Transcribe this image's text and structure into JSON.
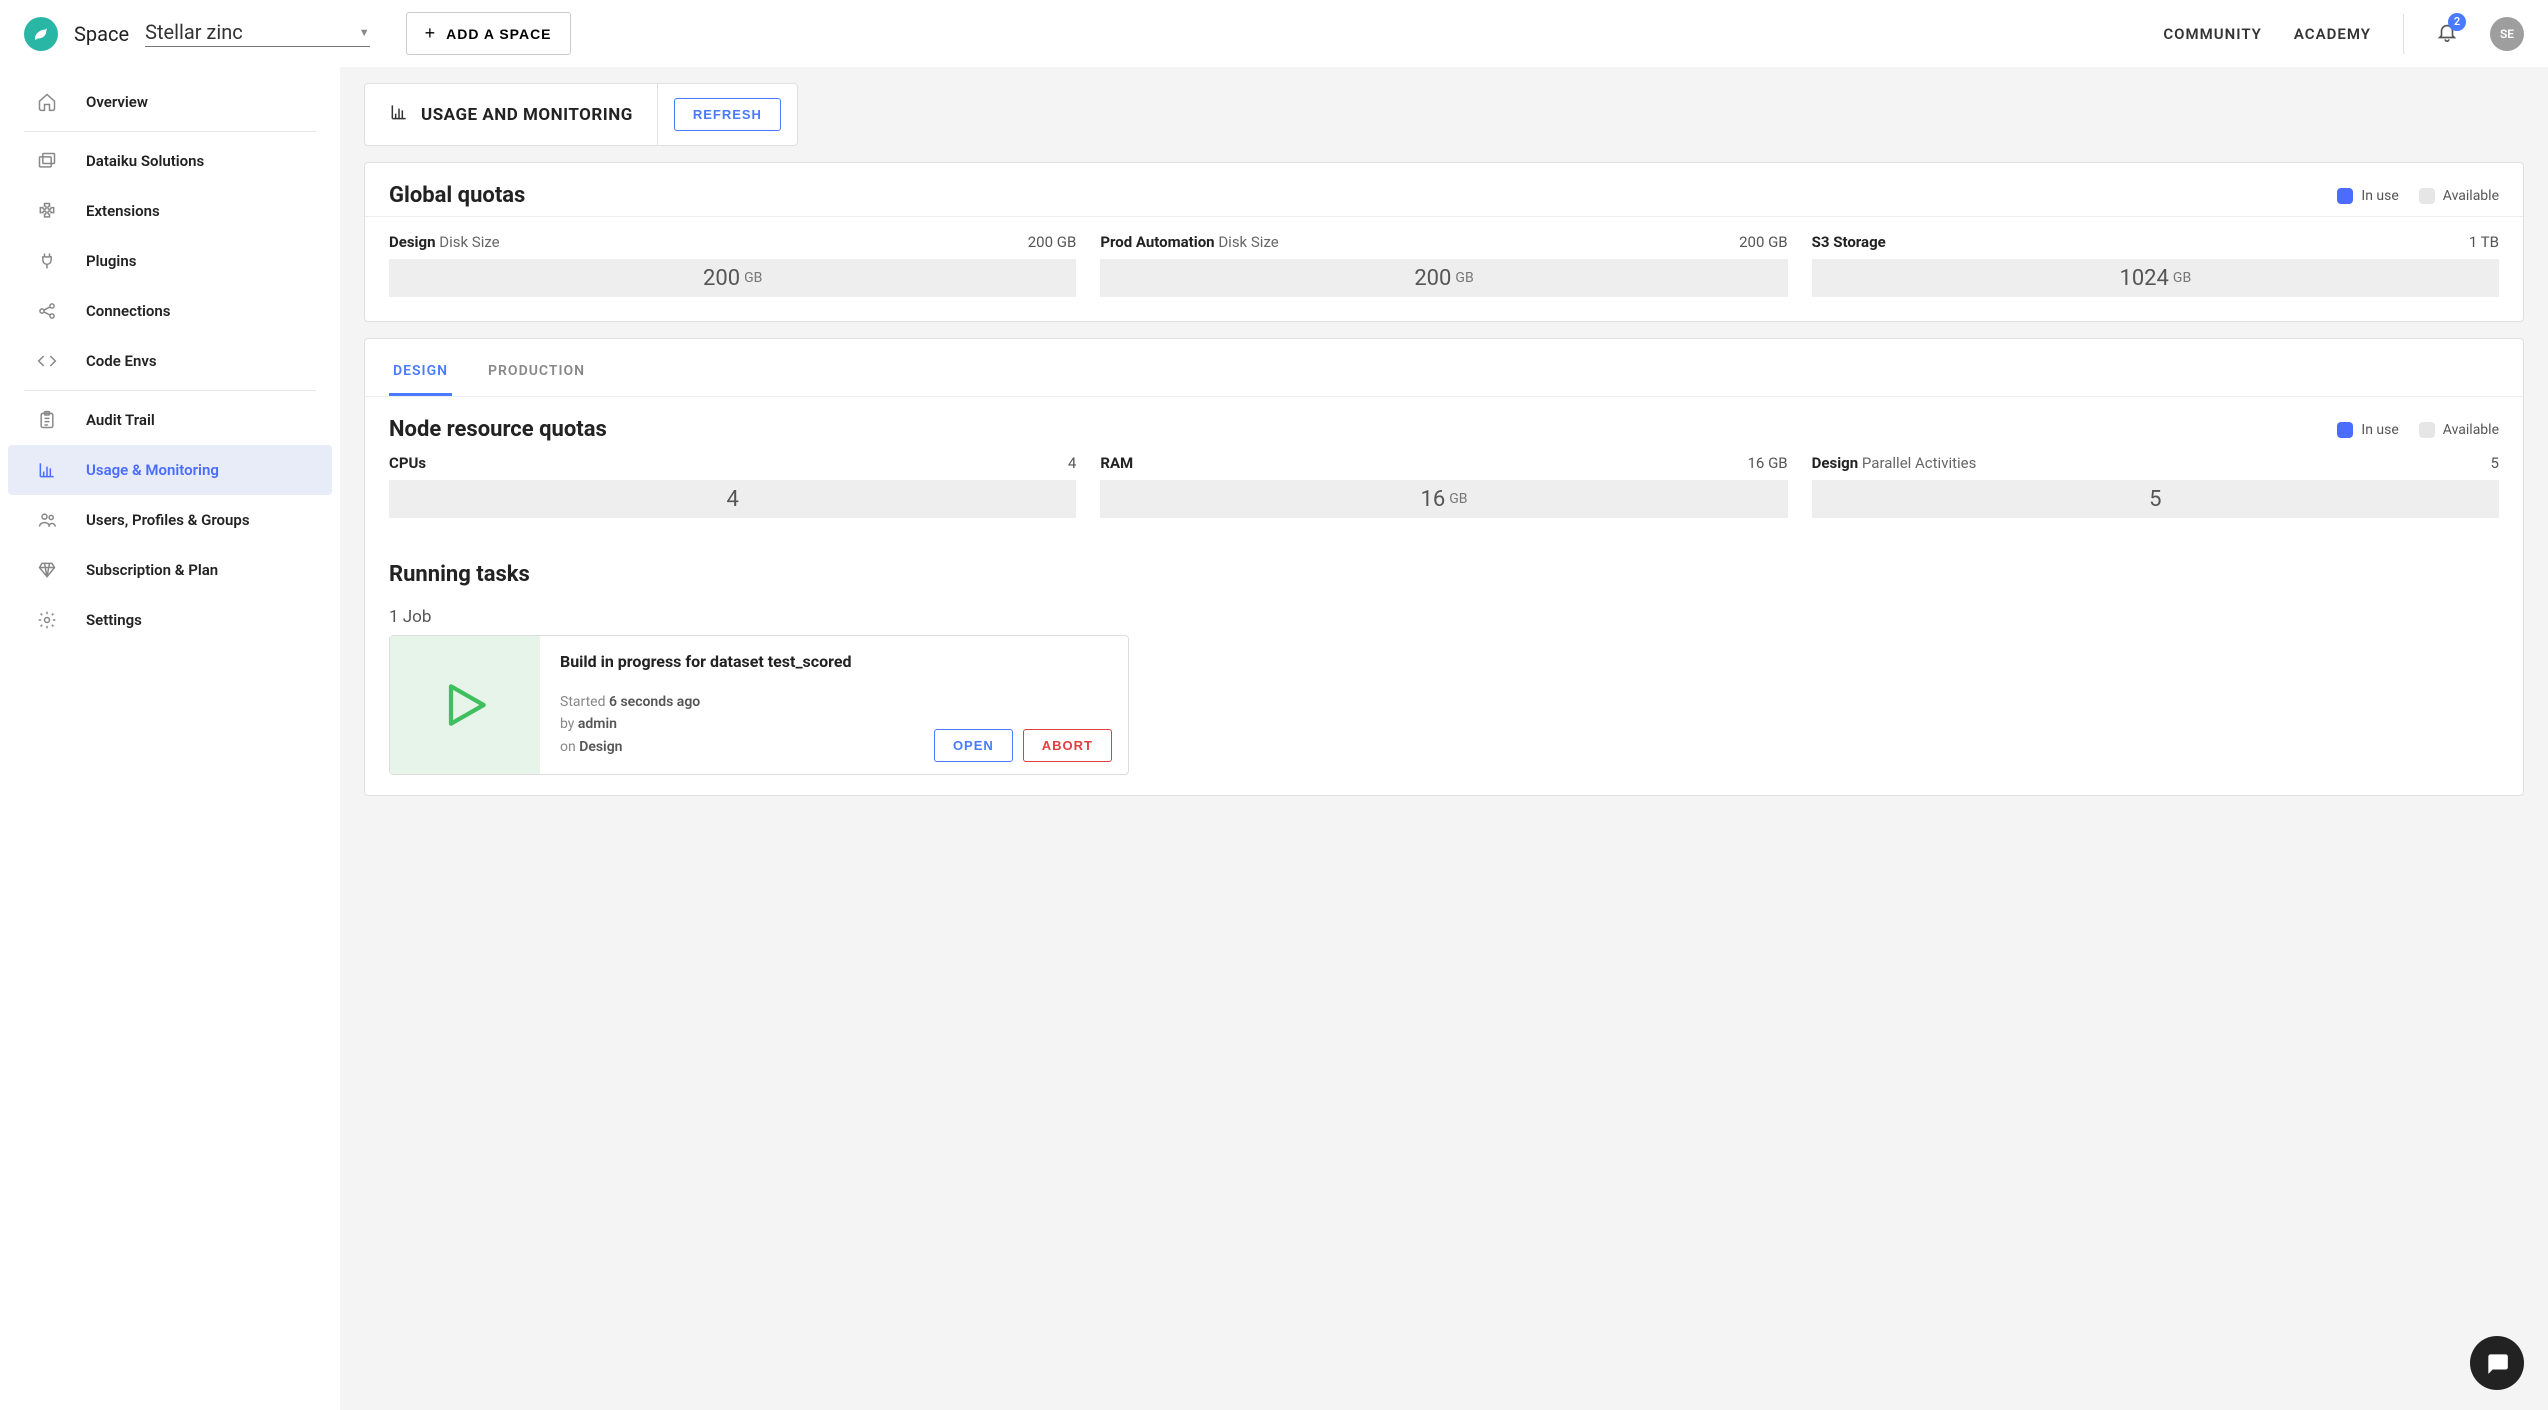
{
  "colors": {
    "accent": "#4a6cff",
    "link_blue": "#4a7bff",
    "danger": "#e04040",
    "logo_bg": "#2ab6a4",
    "bar_bg": "#eeeeee",
    "legend_avail": "#e6e6e6",
    "job_icon_bg": "#e7f4e9",
    "play_stroke": "#3fbf5f"
  },
  "topbar": {
    "space_label": "Space",
    "space_name": "Stellar zinc",
    "add_space_label": "ADD A SPACE",
    "links": {
      "community": "COMMUNITY",
      "academy": "ACADEMY"
    },
    "notification_count": "2",
    "avatar_initials": "SE"
  },
  "sidebar": {
    "items": [
      {
        "id": "overview",
        "icon": "home-icon",
        "label": "Overview"
      },
      {
        "id": "solutions",
        "icon": "package-icon",
        "label": "Dataiku Solutions"
      },
      {
        "id": "extensions",
        "icon": "puzzle-icon",
        "label": "Extensions"
      },
      {
        "id": "plugins",
        "icon": "plug-icon",
        "label": "Plugins"
      },
      {
        "id": "connections",
        "icon": "share-icon",
        "label": "Connections"
      },
      {
        "id": "code-envs",
        "icon": "code-icon",
        "label": "Code Envs"
      },
      {
        "id": "audit-trail",
        "icon": "clipboard-icon",
        "label": "Audit Trail"
      },
      {
        "id": "usage-monitoring",
        "icon": "chart-icon",
        "label": "Usage & Monitoring"
      },
      {
        "id": "users",
        "icon": "users-icon",
        "label": "Users, Profiles & Groups"
      },
      {
        "id": "subscription",
        "icon": "diamond-icon",
        "label": "Subscription & Plan"
      },
      {
        "id": "settings",
        "icon": "gear-icon",
        "label": "Settings"
      }
    ]
  },
  "header": {
    "title": "USAGE AND MONITORING",
    "refresh_label": "REFRESH"
  },
  "legend": {
    "in_use": "In use",
    "available": "Available"
  },
  "global_quotas": {
    "title": "Global quotas",
    "items": [
      {
        "prefix": "Design",
        "suffix": "Disk Size",
        "value": "200 GB",
        "bar_value": "200",
        "bar_unit": "GB"
      },
      {
        "prefix": "Prod Automation",
        "suffix": "Disk Size",
        "value": "200 GB",
        "bar_value": "200",
        "bar_unit": "GB"
      },
      {
        "prefix": "S3 Storage",
        "suffix": "",
        "value": "1 TB",
        "bar_value": "1024",
        "bar_unit": "GB"
      }
    ]
  },
  "tabs": {
    "design": "DESIGN",
    "production": "PRODUCTION",
    "active": "design"
  },
  "node_quotas": {
    "title": "Node resource quotas",
    "items": [
      {
        "prefix": "CPUs",
        "suffix": "",
        "value": "4",
        "bar_value": "4",
        "bar_unit": ""
      },
      {
        "prefix": "RAM",
        "suffix": "",
        "value": "16 GB",
        "bar_value": "16",
        "bar_unit": "GB"
      },
      {
        "prefix": "Design",
        "suffix": "Parallel Activities",
        "value": "5",
        "bar_value": "5",
        "bar_unit": ""
      }
    ]
  },
  "running": {
    "title": "Running tasks",
    "count_label": "1 Job",
    "job": {
      "title": "Build in progress for dataset test_scored",
      "started_prefix": "Started",
      "started_value": "6 seconds ago",
      "by_prefix": "by",
      "by_value": "admin",
      "on_prefix": "on",
      "on_value": "Design",
      "open_label": "OPEN",
      "abort_label": "ABORT"
    }
  }
}
